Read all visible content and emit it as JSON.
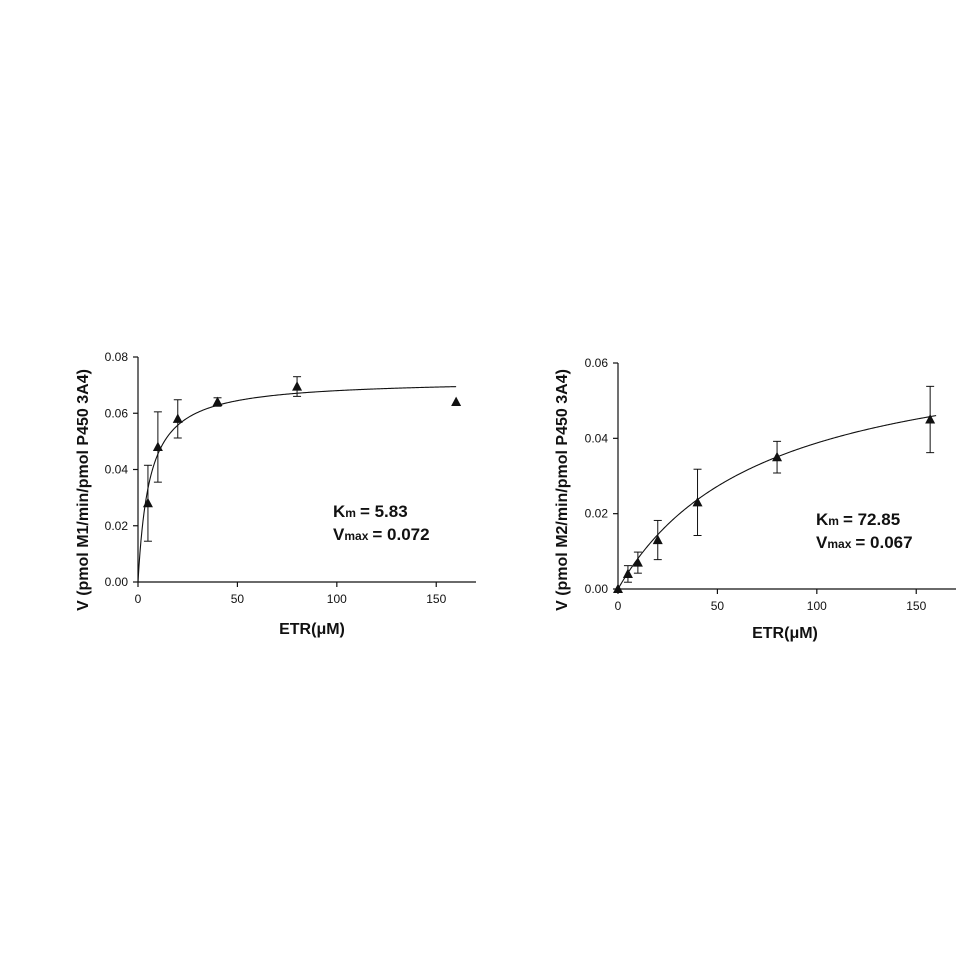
{
  "chart_data": [
    {
      "type": "scatter",
      "title": "",
      "xlabel": "ETR(μM)",
      "ylabel": "V (pmol M1/min/pmol P450 3A4)",
      "xlim": [
        0,
        170
      ],
      "ylim": [
        0,
        0.08
      ],
      "xticks": [
        0,
        50,
        100,
        150
      ],
      "yticks": [
        0.0,
        0.02,
        0.04,
        0.06,
        0.08
      ],
      "x_tick_labels": [
        "0",
        "50",
        "100",
        "150"
      ],
      "y_tick_labels": [
        "0.00",
        "0.02",
        "0.04",
        "0.06",
        "0.08"
      ],
      "grid": false,
      "marker": "triangle",
      "fit": {
        "model": "Michaelis-Menten",
        "Km": 5.83,
        "Vmax": 0.072
      },
      "annotation": {
        "km_label": "K",
        "km_sub": "m",
        "km_value": "= 5.83",
        "vmax_label": "V",
        "vmax_sub": "max",
        "vmax_value": "= 0.072"
      },
      "points": [
        {
          "x": 5,
          "y": 0.028,
          "err": 0.0135
        },
        {
          "x": 10,
          "y": 0.048,
          "err": 0.0125
        },
        {
          "x": 20,
          "y": 0.058,
          "err": 0.0068
        },
        {
          "x": 40,
          "y": 0.064,
          "err": 0.0015
        },
        {
          "x": 80,
          "y": 0.0695,
          "err": 0.0035
        },
        {
          "x": 160,
          "y": 0.064,
          "err": 0
        }
      ]
    },
    {
      "type": "scatter",
      "title": "",
      "xlabel": "ETR(μM)",
      "ylabel": "V (pmol M2/min/pmol P450 3A4)",
      "xlim": [
        0,
        170
      ],
      "ylim": [
        0,
        0.06
      ],
      "xticks": [
        0,
        50,
        100,
        150
      ],
      "yticks": [
        0.0,
        0.02,
        0.04,
        0.06
      ],
      "x_tick_labels": [
        "0",
        "50",
        "100",
        "150"
      ],
      "y_tick_labels": [
        "0.00",
        "0.02",
        "0.04",
        "0.06"
      ],
      "grid": false,
      "marker": "triangle",
      "fit": {
        "model": "Michaelis-Menten",
        "Km": 72.85,
        "Vmax": 0.067
      },
      "annotation": {
        "km_label": "K",
        "km_sub": "m",
        "km_value": "= 72.85",
        "vmax_label": "V",
        "vmax_sub": "max",
        "vmax_value": "= 0.067"
      },
      "points": [
        {
          "x": 0,
          "y": 0.0,
          "err": 0
        },
        {
          "x": 5,
          "y": 0.004,
          "err": 0.0022
        },
        {
          "x": 10,
          "y": 0.007,
          "err": 0.0028
        },
        {
          "x": 20,
          "y": 0.013,
          "err": 0.0052
        },
        {
          "x": 40,
          "y": 0.023,
          "err": 0.0088
        },
        {
          "x": 80,
          "y": 0.035,
          "err": 0.0042
        },
        {
          "x": 157,
          "y": 0.045,
          "err": 0.0088
        }
      ]
    }
  ]
}
